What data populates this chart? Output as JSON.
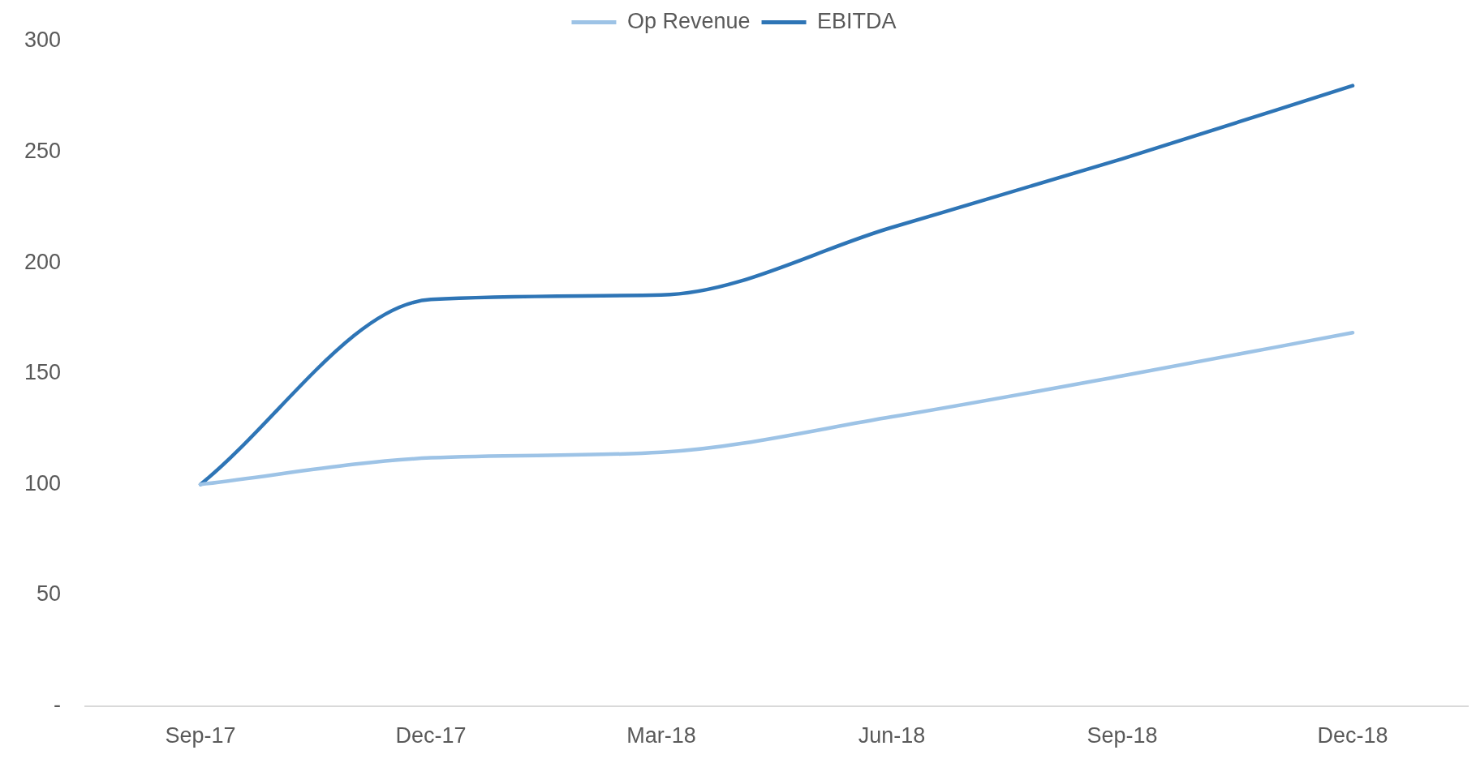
{
  "chart_data": {
    "type": "line",
    "categories": [
      "Sep-17",
      "Dec-17",
      "Mar-18",
      "Jun-18",
      "Sep-18",
      "Dec-18"
    ],
    "series": [
      {
        "name": "Op Revenue",
        "color": "#9dc3e6",
        "values": [
          100,
          112,
          114.5,
          130.5,
          149,
          168.5
        ]
      },
      {
        "name": "EBITDA",
        "color": "#2e75b6",
        "values": [
          100,
          183.5,
          185.5,
          216,
          247,
          280
        ]
      }
    ],
    "ylim": [
      0,
      300
    ],
    "yticks": [
      {
        "value": 0,
        "label": "-"
      },
      50,
      100,
      150,
      200,
      250,
      300
    ],
    "grid": false,
    "legend": "top",
    "marker": "none",
    "line_style": "solid"
  }
}
